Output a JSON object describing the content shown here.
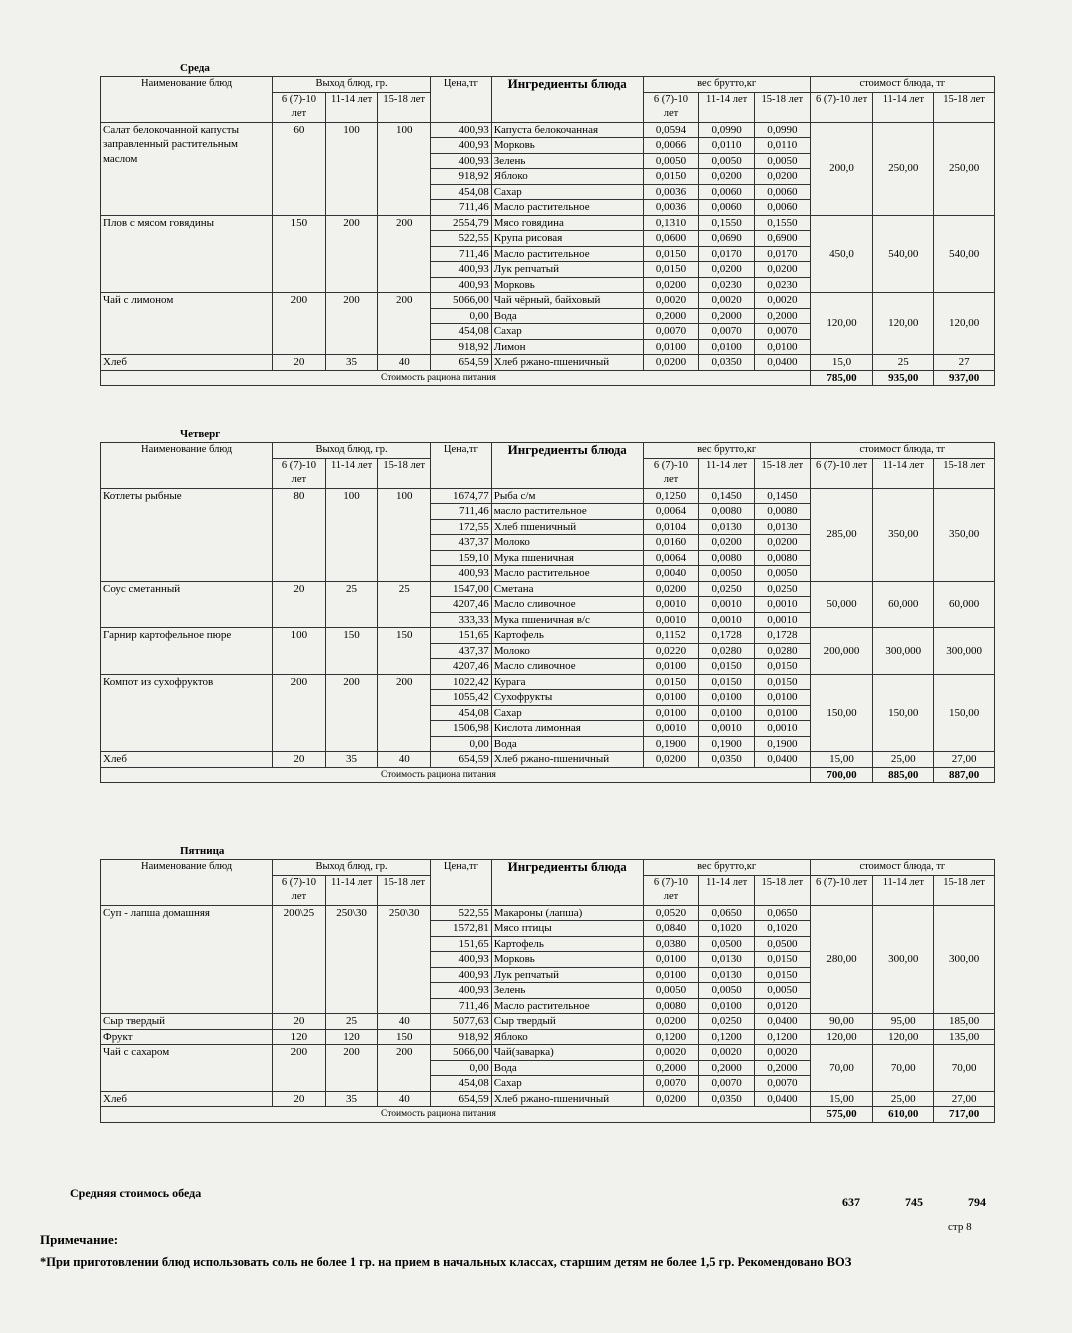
{
  "header": {
    "dish": "Наименование блюд",
    "yield": "Выход блюд, гр.",
    "ages": [
      "6 (7)-10 лет",
      "11-14 лет",
      "15-18 лет"
    ],
    "price": "Цена,тг",
    "ingredients": "Ингредиенты блюда",
    "weight": "вес брутто,кг",
    "cost": "стоимост блюда, тг",
    "cost_ages": [
      "6 (7)-10 лет",
      "11-14 лет",
      "15-18 лет"
    ]
  },
  "days": [
    {
      "title": "Среда",
      "dishes": [
        {
          "name": "Салат белокочанной капусты заправленный растительным маслом",
          "yields": [
            "60",
            "100",
            "100"
          ],
          "cost": [
            "200,0",
            "250,00",
            "250,00"
          ],
          "items": [
            [
              "400,93",
              "Капуста белокочанная",
              "0,0594",
              "0,0990",
              "0,0990"
            ],
            [
              "400,93",
              "Морковь",
              "0,0066",
              "0,0110",
              "0,0110"
            ],
            [
              "400,93",
              "Зелень",
              "0,0050",
              "0,0050",
              "0,0050"
            ],
            [
              "918,92",
              "Яблоко",
              "0,0150",
              "0,0200",
              "0,0200"
            ],
            [
              "454,08",
              "Сахар",
              "0,0036",
              "0,0060",
              "0,0060"
            ],
            [
              "711,46",
              "Масло растительное",
              "0,0036",
              "0,0060",
              "0,0060"
            ]
          ]
        },
        {
          "name": "Плов с мясом говядины",
          "yields": [
            "150",
            "200",
            "200"
          ],
          "cost": [
            "450,0",
            "540,00",
            "540,00"
          ],
          "items": [
            [
              "2554,79",
              "Мясо говядина",
              "0,1310",
              "0,1550",
              "0,1550"
            ],
            [
              "522,55",
              "Крупа рисовая",
              "0,0600",
              "0,0690",
              "0,6900"
            ],
            [
              "711,46",
              "Масло растительное",
              "0,0150",
              "0,0170",
              "0,0170"
            ],
            [
              "400,93",
              "Лук репчатый",
              "0,0150",
              "0,0200",
              "0,0200"
            ],
            [
              "400,93",
              "Морковь",
              "0,0200",
              "0,0230",
              "0,0230"
            ]
          ]
        },
        {
          "name": "Чай с лимоном",
          "yields": [
            "200",
            "200",
            "200"
          ],
          "cost": [
            "120,00",
            "120,00",
            "120,00"
          ],
          "items": [
            [
              "5066,00",
              "Чай чёрный, байховый",
              "0,0020",
              "0,0020",
              "0,0020"
            ],
            [
              "0,00",
              "Вода",
              "0,2000",
              "0,2000",
              "0,2000"
            ],
            [
              "454,08",
              "Сахар",
              "0,0070",
              "0,0070",
              "0,0070"
            ],
            [
              "918,92",
              "Лимон",
              "0,0100",
              "0,0100",
              "0,0100"
            ]
          ]
        },
        {
          "name": "Хлеб",
          "yields": [
            "20",
            "35",
            "40"
          ],
          "cost": [
            "15,0",
            "25",
            "27"
          ],
          "items": [
            [
              "654,59",
              "Хлеб ржано-пшеничный",
              "0,0200",
              "0,0350",
              "0,0400"
            ]
          ]
        }
      ],
      "total_label": "Стоимость рациона питания",
      "totals": [
        "785,00",
        "935,00",
        "937,00"
      ]
    },
    {
      "title": "Четверг",
      "dishes": [
        {
          "name": "Котлеты рыбные",
          "yields": [
            "80",
            "100",
            "100"
          ],
          "cost": [
            "285,00",
            "350,00",
            "350,00"
          ],
          "items": [
            [
              "1674,77",
              "Рыба с/м",
              "0,1250",
              "0,1450",
              "0,1450"
            ],
            [
              "711,46",
              "масло растительное",
              "0,0064",
              "0,0080",
              "0,0080"
            ],
            [
              "172,55",
              "Хлеб пшеничный",
              "0,0104",
              "0,0130",
              "0,0130"
            ],
            [
              "437,37",
              "Молоко",
              "0,0160",
              "0,0200",
              "0,0200"
            ],
            [
              "159,10",
              "Мука пшеничная",
              "0,0064",
              "0,0080",
              "0,0080"
            ],
            [
              "400,93",
              "Масло растительное",
              "0,0040",
              "0,0050",
              "0,0050"
            ]
          ]
        },
        {
          "name": "Соус сметанный",
          "yields": [
            "20",
            "25",
            "25"
          ],
          "cost": [
            "50,000",
            "60,000",
            "60,000"
          ],
          "items": [
            [
              "1547,00",
              "Сметана",
              "0,0200",
              "0,0250",
              "0,0250"
            ],
            [
              "4207,46",
              "Масло сливочное",
              "0,0010",
              "0,0010",
              "0,0010"
            ],
            [
              "333,33",
              "Мука пшеничная в/с",
              "0,0010",
              "0,0010",
              "0,0010"
            ]
          ]
        },
        {
          "name": "Гарнир картофельное пюре",
          "yields": [
            "100",
            "150",
            "150"
          ],
          "cost": [
            "200,000",
            "300,000",
            "300,000"
          ],
          "items": [
            [
              "151,65",
              "Картофель",
              "0,1152",
              "0,1728",
              "0,1728"
            ],
            [
              "437,37",
              "Молоко",
              "0,0220",
              "0,0280",
              "0,0280"
            ],
            [
              "4207,46",
              "Масло сливочное",
              "0,0100",
              "0,0150",
              "0,0150"
            ]
          ]
        },
        {
          "name": "Компот из сухофруктов",
          "yields": [
            "200",
            "200",
            "200"
          ],
          "cost": [
            "150,00",
            "150,00",
            "150,00"
          ],
          "items": [
            [
              "1022,42",
              "Курага",
              "0,0150",
              "0,0150",
              "0,0150"
            ],
            [
              "1055,42",
              "Сухофрукты",
              "0,0100",
              "0,0100",
              "0,0100"
            ],
            [
              "454,08",
              "Сахар",
              "0,0100",
              "0,0100",
              "0,0100"
            ],
            [
              "1506,98",
              "Кислота лимонная",
              "0,0010",
              "0,0010",
              "0,0010"
            ],
            [
              "0,00",
              "Вода",
              "0,1900",
              "0,1900",
              "0,1900"
            ]
          ]
        },
        {
          "name": "Хлеб",
          "yields": [
            "20",
            "35",
            "40"
          ],
          "cost": [
            "15,00",
            "25,00",
            "27,00"
          ],
          "items": [
            [
              "654,59",
              "Хлеб ржано-пшеничный",
              "0,0200",
              "0,0350",
              "0,0400"
            ]
          ]
        }
      ],
      "total_label": "Стоимость рациона питания",
      "totals": [
        "700,00",
        "885,00",
        "887,00"
      ]
    },
    {
      "title": "Пятница",
      "dishes": [
        {
          "name": "Суп - лапша домашняя",
          "yields": [
            "200\\25",
            "250\\30",
            "250\\30"
          ],
          "cost": [
            "280,00",
            "300,00",
            "300,00"
          ],
          "items": [
            [
              "522,55",
              "Макароны (лапша)",
              "0,0520",
              "0,0650",
              "0,0650"
            ],
            [
              "1572,81",
              "Мясо птицы",
              "0,0840",
              "0,1020",
              "0,1020"
            ],
            [
              "151,65",
              "Картофель",
              "0,0380",
              "0,0500",
              "0,0500"
            ],
            [
              "400,93",
              "Морковь",
              "0,0100",
              "0,0130",
              "0,0150"
            ],
            [
              "400,93",
              "Лук репчатый",
              "0,0100",
              "0,0130",
              "0,0150"
            ],
            [
              "400,93",
              "Зелень",
              "0,0050",
              "0,0050",
              "0,0050"
            ],
            [
              "711,46",
              "Масло растительное",
              "0,0080",
              "0,0100",
              "0,0120"
            ]
          ]
        },
        {
          "name": "Сыр твердый",
          "yields": [
            "20",
            "25",
            "40"
          ],
          "cost": [
            "90,00",
            "95,00",
            "185,00"
          ],
          "items": [
            [
              "5077,63",
              "Сыр твердый",
              "0,0200",
              "0,0250",
              "0,0400"
            ]
          ]
        },
        {
          "name": "Фрукт",
          "yields": [
            "120",
            "120",
            "150"
          ],
          "cost": [
            "120,00",
            "120,00",
            "135,00"
          ],
          "items": [
            [
              "918,92",
              "Яблоко",
              "0,1200",
              "0,1200",
              "0,1200"
            ]
          ]
        },
        {
          "name": "Чай с сахаром",
          "yields": [
            "200",
            "200",
            "200"
          ],
          "cost": [
            "70,00",
            "70,00",
            "70,00"
          ],
          "items": [
            [
              "5066,00",
              "Чай(заварка)",
              "0,0020",
              "0,0020",
              "0,0020"
            ],
            [
              "0,00",
              "Вода",
              "0,2000",
              "0,2000",
              "0,2000"
            ],
            [
              "454,08",
              "Сахар",
              "0,0070",
              "0,0070",
              "0,0070"
            ]
          ]
        },
        {
          "name": "Хлеб",
          "yields": [
            "20",
            "35",
            "40"
          ],
          "cost": [
            "15,00",
            "25,00",
            "27,00"
          ],
          "items": [
            [
              "654,59",
              "Хлеб ржано-пшеничный",
              "0,0200",
              "0,0350",
              "0,0400"
            ]
          ]
        }
      ],
      "total_label": "Стоимость рациона питания",
      "totals": [
        "575,00",
        "610,00",
        "717,00"
      ]
    }
  ],
  "average": {
    "label": "Средняя стоимось обеда",
    "values": [
      "637",
      "745",
      "794"
    ]
  },
  "page_number": "стр 8",
  "note": {
    "title": "Примечание:",
    "text": "*При приготовлении блюд использовать соль не более 1 гр. на прием в начальных классах, старшим детям не более 1,5 гр. Рекомендовано ВОЗ"
  }
}
